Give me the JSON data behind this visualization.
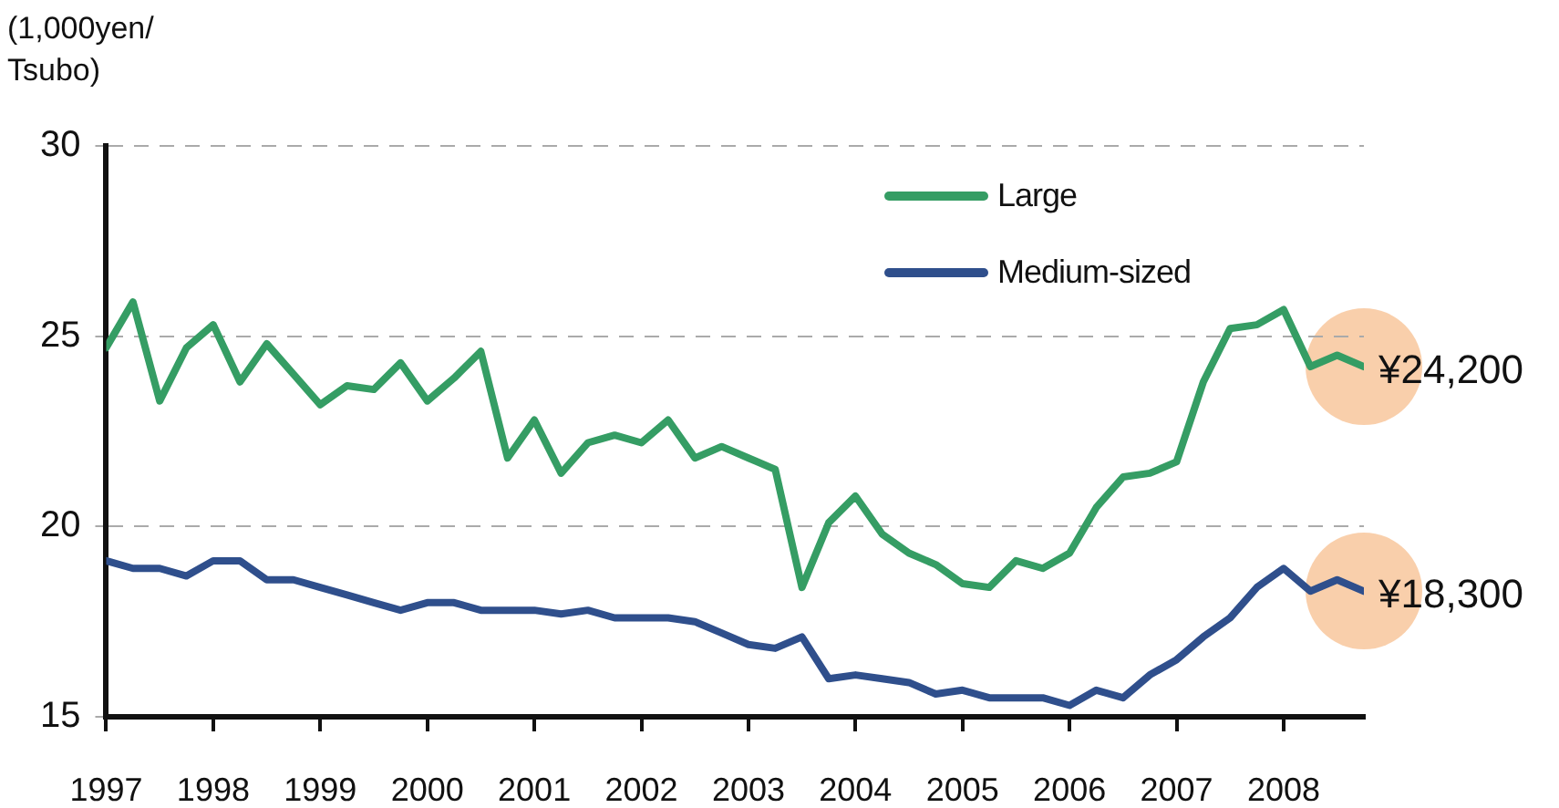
{
  "chart_data": {
    "type": "line",
    "ylabel": "(1,000yen/\nTsubo)",
    "x": [
      1997,
      1997.25,
      1997.5,
      1997.75,
      1998,
      1998.25,
      1998.5,
      1998.75,
      1999,
      1999.25,
      1999.5,
      1999.75,
      2000,
      2000.25,
      2000.5,
      2000.75,
      2001,
      2001.25,
      2001.5,
      2001.75,
      2002,
      2002.25,
      2002.5,
      2002.75,
      2003,
      2003.25,
      2003.5,
      2003.75,
      2004,
      2004.25,
      2004.5,
      2004.75,
      2005,
      2005.25,
      2005.5,
      2005.75,
      2006,
      2006.25,
      2006.5,
      2006.75,
      2007,
      2007.25,
      2007.5,
      2007.75,
      2008,
      2008.25,
      2008.5,
      2008.75
    ],
    "series": [
      {
        "name": "Large",
        "color": "#359d64",
        "values": [
          24.7,
          25.9,
          23.3,
          24.7,
          25.3,
          23.8,
          24.8,
          24.0,
          23.2,
          23.7,
          23.6,
          24.3,
          23.3,
          23.9,
          24.6,
          21.8,
          22.8,
          21.4,
          22.2,
          22.4,
          22.2,
          22.8,
          21.8,
          22.1,
          21.8,
          21.5,
          18.4,
          20.1,
          20.8,
          19.8,
          19.3,
          19.0,
          18.5,
          18.4,
          19.1,
          18.9,
          19.3,
          20.5,
          21.3,
          21.4,
          21.7,
          23.8,
          25.2,
          25.3,
          25.7,
          24.2,
          24.5,
          24.2
        ]
      },
      {
        "name": "Medium-sized",
        "color": "#2f4f8c",
        "values": [
          19.1,
          18.9,
          18.9,
          18.7,
          19.1,
          19.1,
          18.6,
          18.6,
          18.4,
          18.2,
          18.0,
          17.8,
          18.0,
          18.0,
          17.8,
          17.8,
          17.8,
          17.7,
          17.8,
          17.6,
          17.6,
          17.6,
          17.5,
          17.2,
          16.9,
          16.8,
          17.1,
          16.0,
          16.1,
          16.0,
          15.9,
          15.6,
          15.7,
          15.5,
          15.5,
          15.5,
          15.3,
          15.7,
          15.5,
          16.1,
          16.5,
          17.1,
          17.6,
          18.4,
          18.9,
          18.3,
          18.6,
          18.3
        ]
      }
    ],
    "xlim": [
      1997,
      2008.75
    ],
    "xticks": [
      1997,
      1998,
      1999,
      2000,
      2001,
      2002,
      2003,
      2004,
      2005,
      2006,
      2007,
      2008
    ],
    "ylim": [
      15,
      30
    ],
    "yticks": [
      15,
      20,
      25,
      30
    ],
    "grid": "y",
    "legend": "top right",
    "marker": "none",
    "line_style": "solid",
    "annotations": [
      {
        "text": "¥24,200",
        "x": 2008.75,
        "y": 24.2
      },
      {
        "text": "¥18,300",
        "x": 2008.75,
        "y": 18.3
      }
    ]
  }
}
